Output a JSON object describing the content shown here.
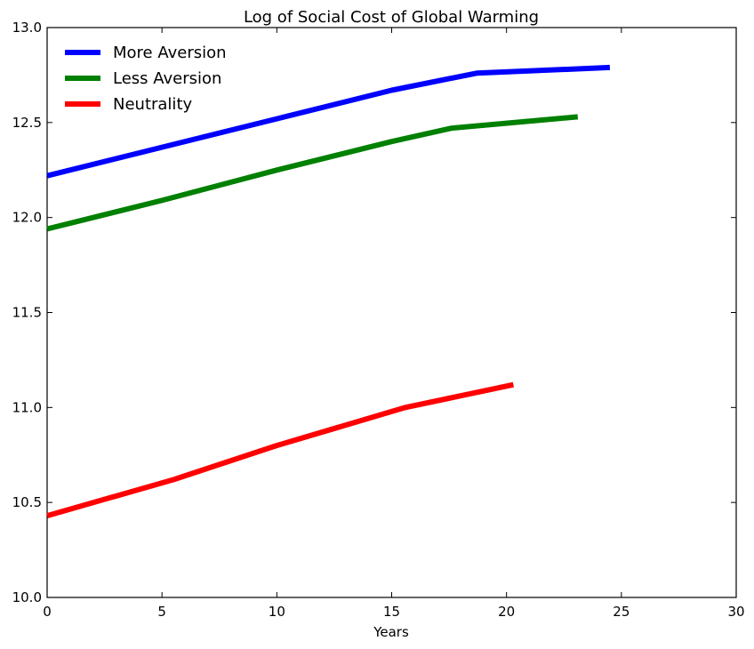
{
  "chart_data": {
    "type": "line",
    "title": "Log of Social Cost of Global Warming",
    "xlabel": "Years",
    "ylabel": "",
    "xlim": [
      0,
      30
    ],
    "ylim": [
      10.0,
      13.0
    ],
    "xticks": [
      "0",
      "5",
      "10",
      "15",
      "20",
      "25",
      "30"
    ],
    "yticks": [
      "10.0",
      "10.5",
      "11.0",
      "11.5",
      "12.0",
      "12.5",
      "13.0"
    ],
    "grid": false,
    "legend_position": "top-left",
    "series": [
      {
        "name": "More Aversion",
        "color": "#0000ff",
        "x": [
          0,
          5,
          10,
          15,
          18.7,
          24.5
        ],
        "y": [
          12.22,
          12.37,
          12.52,
          12.67,
          12.76,
          12.79
        ]
      },
      {
        "name": "Less Aversion",
        "color": "#008000",
        "x": [
          0,
          5,
          10,
          15,
          17.6,
          23.1
        ],
        "y": [
          11.94,
          12.09,
          12.25,
          12.4,
          12.47,
          12.53
        ]
      },
      {
        "name": "Neutrality",
        "color": "#ff0000",
        "x": [
          0,
          5.5,
          10,
          15.6,
          20.3
        ],
        "y": [
          10.43,
          10.62,
          10.8,
          11.0,
          11.12
        ]
      }
    ]
  }
}
